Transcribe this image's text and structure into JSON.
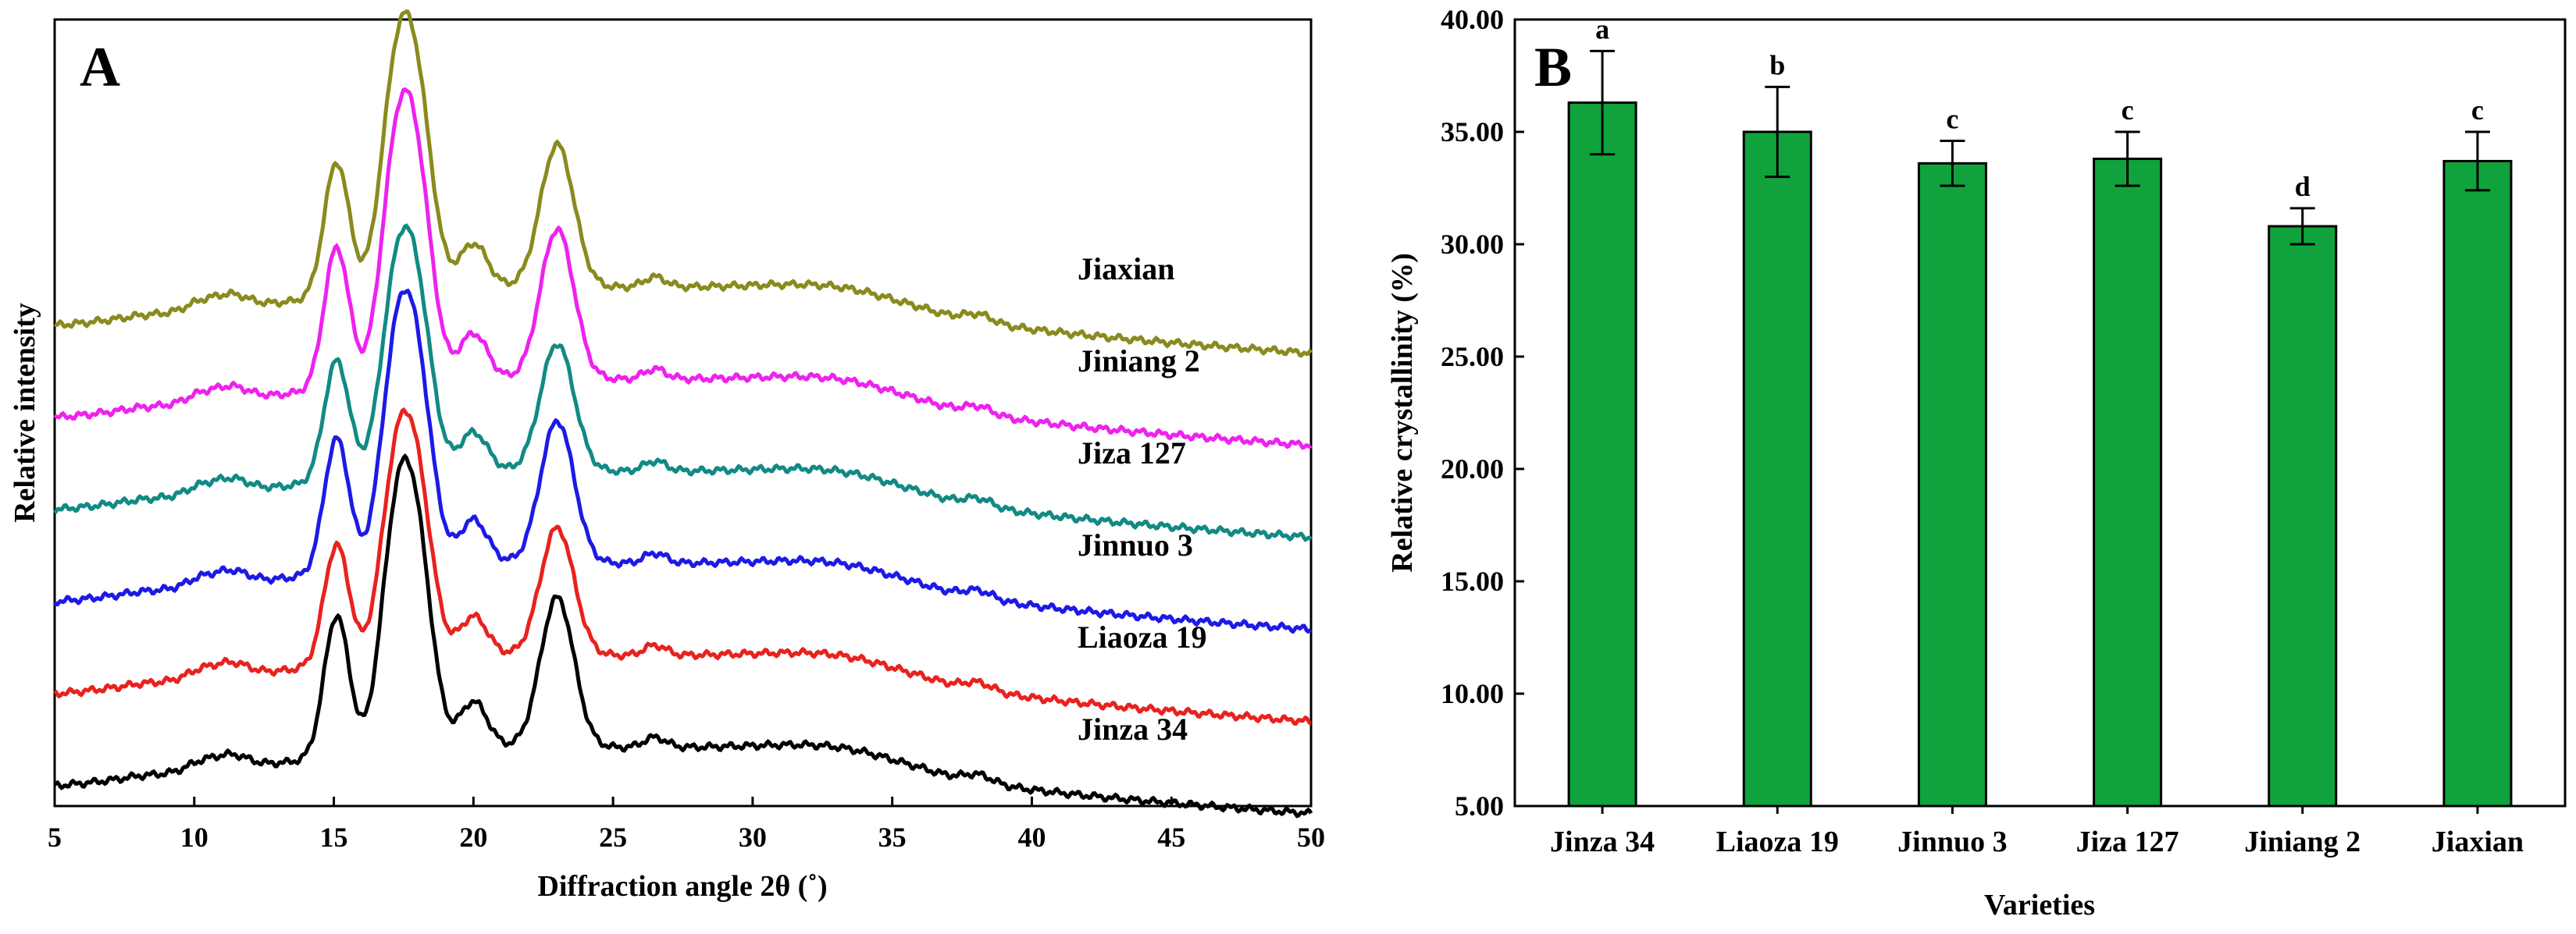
{
  "figure": {
    "panels": [
      "A",
      "B"
    ]
  },
  "chart_data": [
    {
      "type": "line",
      "panel": "A",
      "title": "",
      "xlabel": "Diffraction angle 2θ (˚)",
      "ylabel": "Relative intensity",
      "xlim": [
        5,
        50
      ],
      "xticks": [
        "5",
        "10",
        "15",
        "20",
        "25",
        "30",
        "35",
        "40",
        "45",
        "50"
      ],
      "grid": false,
      "peaks_deg": [
        15.1,
        17.2,
        18.0,
        20.0,
        23.0
      ],
      "series": [
        {
          "name": "Jinza 34",
          "color": "#000000",
          "offset": 0,
          "peak_scale": 1.0
        },
        {
          "name": "Liaoza 19",
          "color": "#e8221e",
          "offset": 1,
          "peak_scale": 0.85
        },
        {
          "name": "Jinnuo 3",
          "color": "#1d1ae6",
          "offset": 2,
          "peak_scale": 0.95
        },
        {
          "name": "Jiza 127",
          "color": "#128a84",
          "offset": 3,
          "peak_scale": 0.85
        },
        {
          "name": "Jiniang 2",
          "color": "#ee22ee",
          "offset": 4,
          "peak_scale": 1.0
        },
        {
          "name": "Jiaxian",
          "color": "#8a8a1e",
          "offset": 5,
          "peak_scale": 0.95
        }
      ]
    },
    {
      "type": "bar",
      "panel": "B",
      "title": "",
      "xlabel": "Varieties",
      "ylabel": "Relative crystallinity (%)",
      "ylim": [
        5,
        40
      ],
      "yticks": [
        "5.00",
        "10.00",
        "15.00",
        "20.00",
        "25.00",
        "30.00",
        "35.00",
        "40.00"
      ],
      "bar_color": "#10a33d",
      "categories": [
        "Jinza 34",
        "Liaoza 19",
        "Jinnuo 3",
        "Jiza 127",
        "Jiniang 2",
        "Jiaxian"
      ],
      "values": [
        36.3,
        35.0,
        33.6,
        33.8,
        30.8,
        33.7
      ],
      "errors": [
        2.3,
        2.0,
        1.0,
        1.2,
        0.8,
        1.3
      ],
      "significance": [
        "a",
        "b",
        "c",
        "c",
        "d",
        "c"
      ]
    }
  ]
}
